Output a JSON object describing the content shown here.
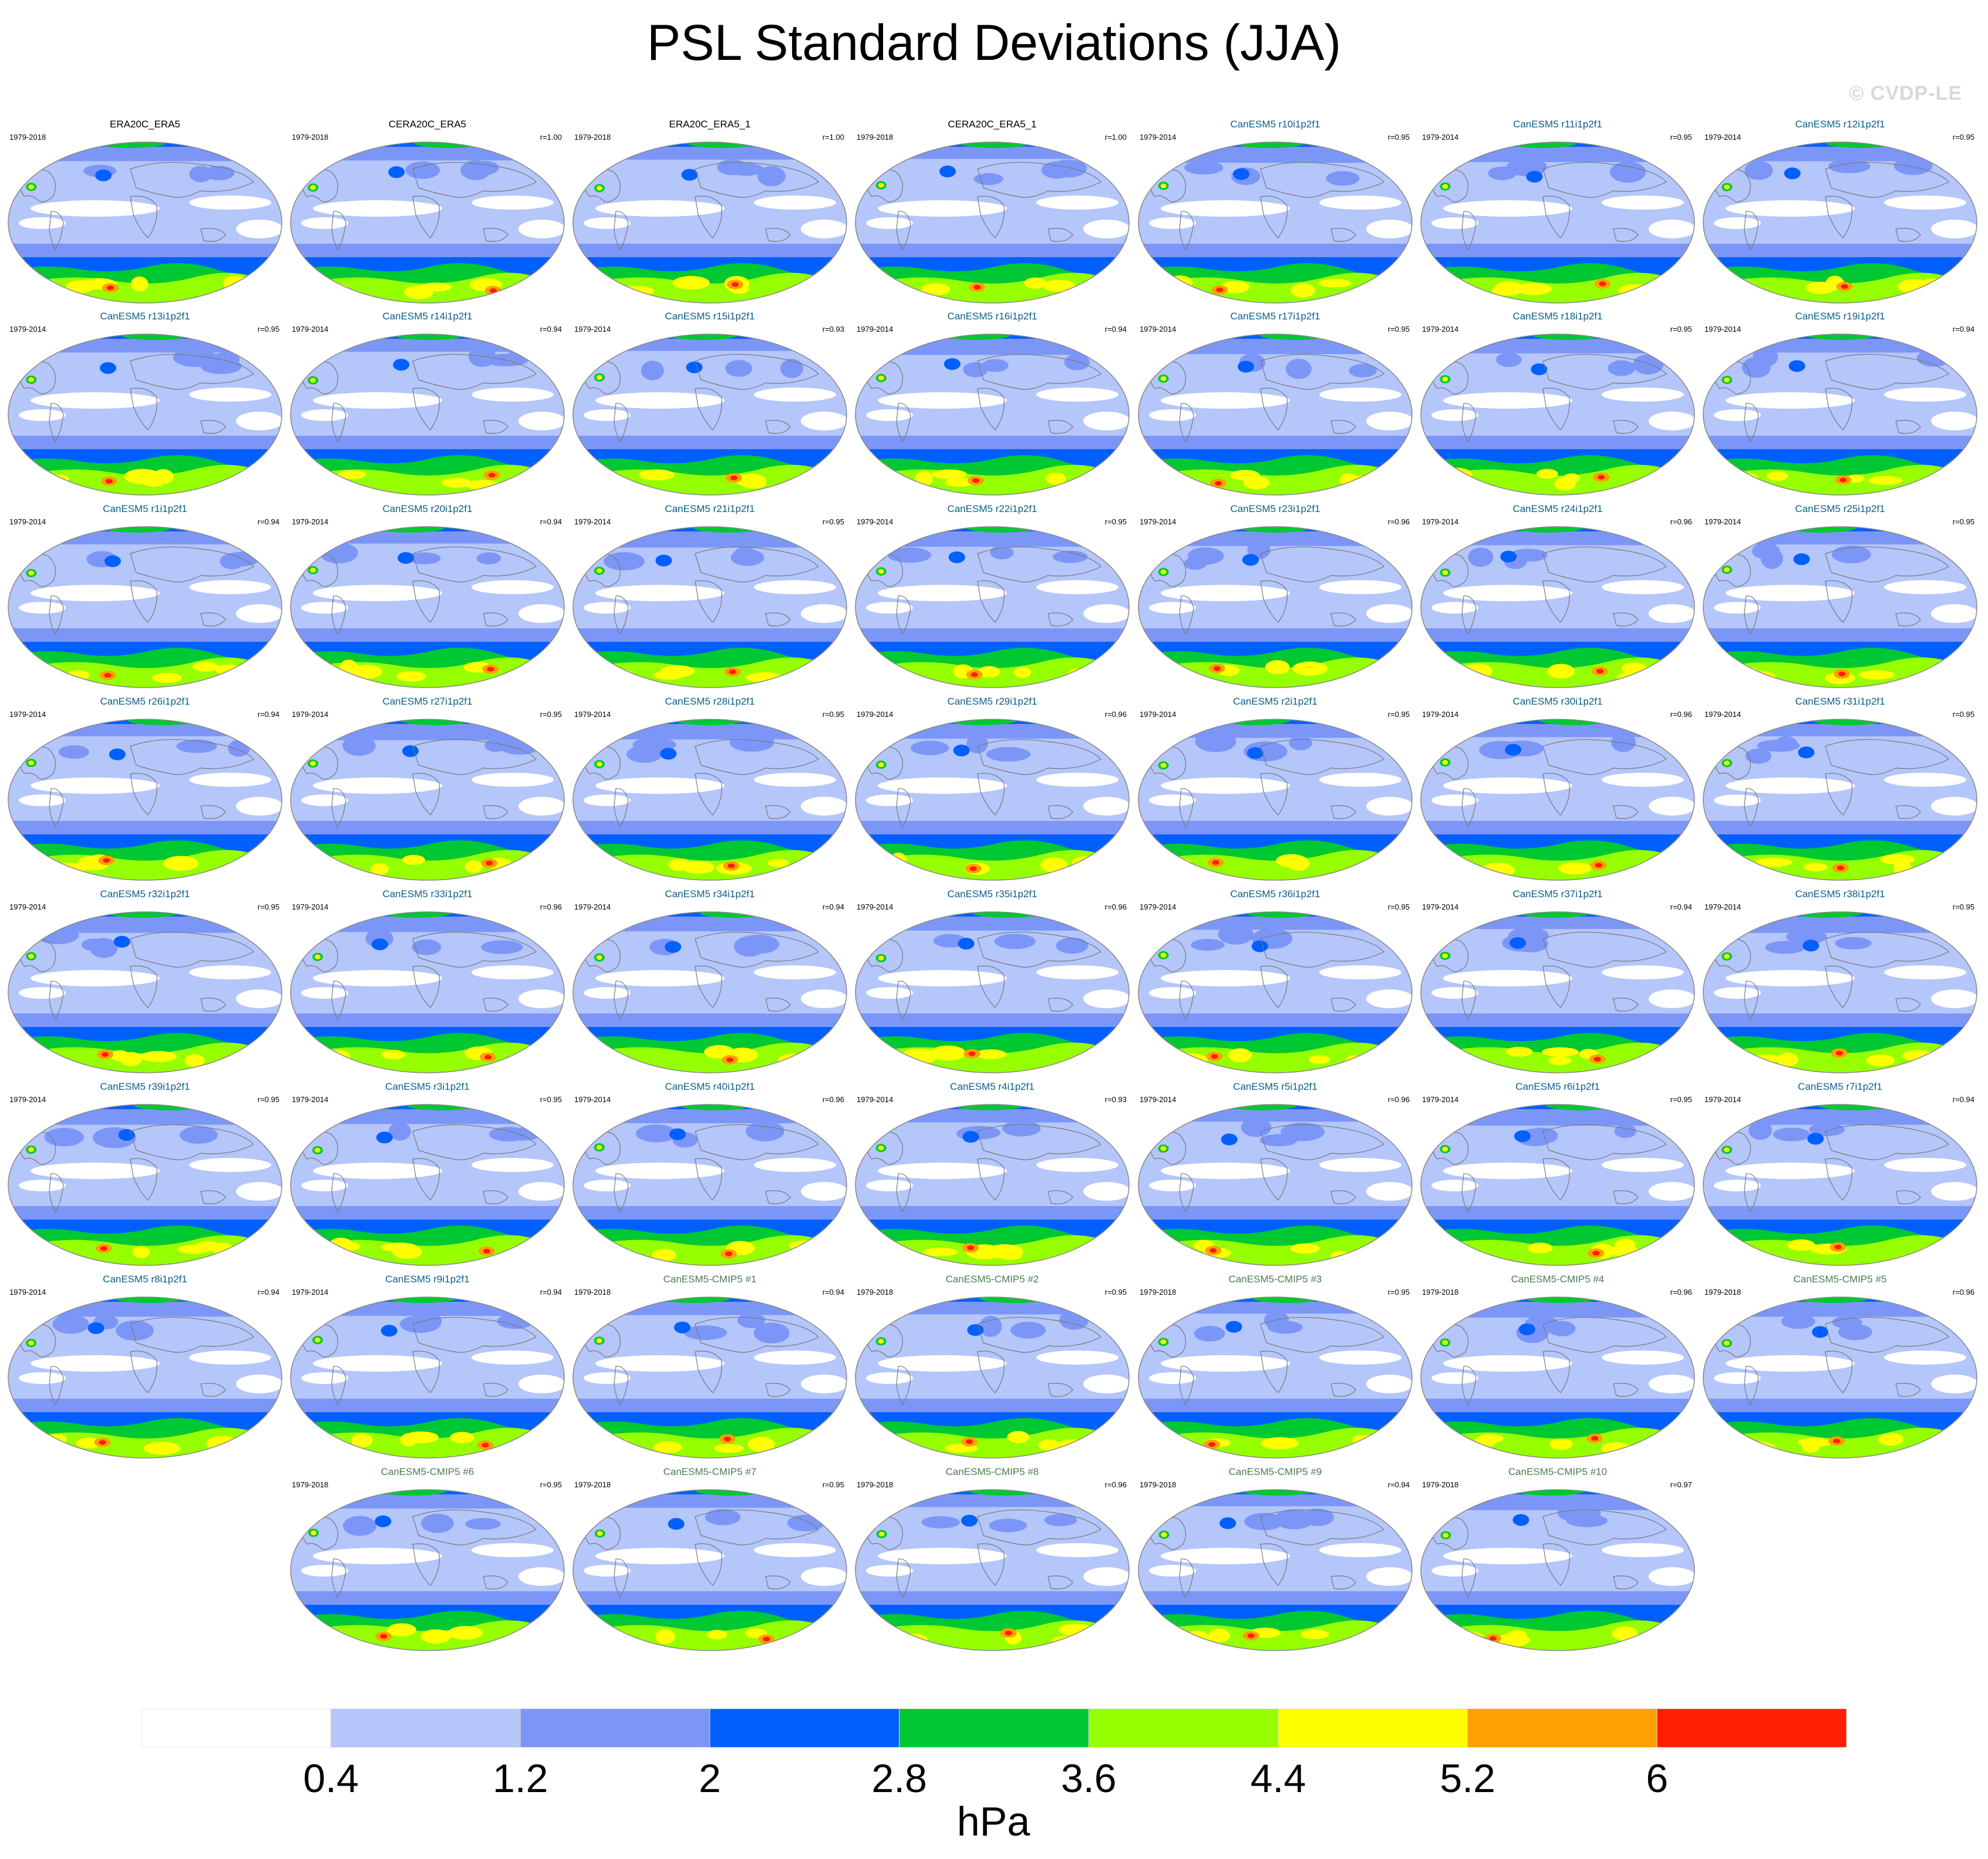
{
  "title": "PSL Standard Deviations (JJA)",
  "watermark": "© CVDP-LE",
  "units": "hPa",
  "colorbar": {
    "colors": [
      "#ffffff",
      "#b4c6fa",
      "#7c96f8",
      "#0060ff",
      "#00c832",
      "#96ff00",
      "#ffff00",
      "#ffa000",
      "#ff1e00"
    ],
    "labels": [
      "0.4",
      "1.2",
      "2",
      "2.8",
      "3.6",
      "4.4",
      "5.2",
      "6"
    ]
  },
  "panels": [
    {
      "title": "ERA20C_ERA5",
      "years": "1979-2018",
      "r": "",
      "kind": "obs"
    },
    {
      "title": "CERA20C_ERA5",
      "years": "1979-2018",
      "r": "r=1.00",
      "kind": "obs"
    },
    {
      "title": "ERA20C_ERA5_1",
      "years": "1979-2018",
      "r": "r=1.00",
      "kind": "obs"
    },
    {
      "title": "CERA20C_ERA5_1",
      "years": "1979-2018",
      "r": "r=1.00",
      "kind": "obs"
    },
    {
      "title": "CanESM5 r10i1p2f1",
      "years": "1979-2014",
      "r": "r=0.95",
      "kind": "model"
    },
    {
      "title": "CanESM5 r11i1p2f1",
      "years": "1979-2014",
      "r": "r=0.95",
      "kind": "model"
    },
    {
      "title": "CanESM5 r12i1p2f1",
      "years": "1979-2014",
      "r": "r=0.95",
      "kind": "model"
    },
    {
      "title": "CanESM5 r13i1p2f1",
      "years": "1979-2014",
      "r": "r=0.95",
      "kind": "model"
    },
    {
      "title": "CanESM5 r14i1p2f1",
      "years": "1979-2014",
      "r": "r=0.94",
      "kind": "model"
    },
    {
      "title": "CanESM5 r15i1p2f1",
      "years": "1979-2014",
      "r": "r=0.93",
      "kind": "model"
    },
    {
      "title": "CanESM5 r16i1p2f1",
      "years": "1979-2014",
      "r": "r=0.94",
      "kind": "model"
    },
    {
      "title": "CanESM5 r17i1p2f1",
      "years": "1979-2014",
      "r": "r=0.95",
      "kind": "model"
    },
    {
      "title": "CanESM5 r18i1p2f1",
      "years": "1979-2014",
      "r": "r=0.95",
      "kind": "model"
    },
    {
      "title": "CanESM5 r19i1p2f1",
      "years": "1979-2014",
      "r": "r=0.94",
      "kind": "model"
    },
    {
      "title": "CanESM5 r1i1p2f1",
      "years": "1979-2014",
      "r": "r=0.94",
      "kind": "model"
    },
    {
      "title": "CanESM5 r20i1p2f1",
      "years": "1979-2014",
      "r": "r=0.94",
      "kind": "model"
    },
    {
      "title": "CanESM5 r21i1p2f1",
      "years": "1979-2014",
      "r": "r=0.95",
      "kind": "model"
    },
    {
      "title": "CanESM5 r22i1p2f1",
      "years": "1979-2014",
      "r": "r=0.95",
      "kind": "model"
    },
    {
      "title": "CanESM5 r23i1p2f1",
      "years": "1979-2014",
      "r": "r=0.96",
      "kind": "model"
    },
    {
      "title": "CanESM5 r24i1p2f1",
      "years": "1979-2014",
      "r": "r=0.96",
      "kind": "model"
    },
    {
      "title": "CanESM5 r25i1p2f1",
      "years": "1979-2014",
      "r": "r=0.95",
      "kind": "model"
    },
    {
      "title": "CanESM5 r26i1p2f1",
      "years": "1979-2014",
      "r": "r=0.94",
      "kind": "model"
    },
    {
      "title": "CanESM5 r27i1p2f1",
      "years": "1979-2014",
      "r": "r=0.95",
      "kind": "model"
    },
    {
      "title": "CanESM5 r28i1p2f1",
      "years": "1979-2014",
      "r": "r=0.95",
      "kind": "model"
    },
    {
      "title": "CanESM5 r29i1p2f1",
      "years": "1979-2014",
      "r": "r=0.96",
      "kind": "model"
    },
    {
      "title": "CanESM5 r2i1p2f1",
      "years": "1979-2014",
      "r": "r=0.95",
      "kind": "model"
    },
    {
      "title": "CanESM5 r30i1p2f1",
      "years": "1979-2014",
      "r": "r=0.96",
      "kind": "model"
    },
    {
      "title": "CanESM5 r31i1p2f1",
      "years": "1979-2014",
      "r": "r=0.95",
      "kind": "model"
    },
    {
      "title": "CanESM5 r32i1p2f1",
      "years": "1979-2014",
      "r": "r=0.95",
      "kind": "model"
    },
    {
      "title": "CanESM5 r33i1p2f1",
      "years": "1979-2014",
      "r": "r=0.96",
      "kind": "model"
    },
    {
      "title": "CanESM5 r34i1p2f1",
      "years": "1979-2014",
      "r": "r=0.94",
      "kind": "model"
    },
    {
      "title": "CanESM5 r35i1p2f1",
      "years": "1979-2014",
      "r": "r=0.96",
      "kind": "model"
    },
    {
      "title": "CanESM5 r36i1p2f1",
      "years": "1979-2014",
      "r": "r=0.95",
      "kind": "model"
    },
    {
      "title": "CanESM5 r37i1p2f1",
      "years": "1979-2014",
      "r": "r=0.94",
      "kind": "model"
    },
    {
      "title": "CanESM5 r38i1p2f1",
      "years": "1979-2014",
      "r": "r=0.95",
      "kind": "model"
    },
    {
      "title": "CanESM5 r39i1p2f1",
      "years": "1979-2014",
      "r": "r=0.95",
      "kind": "model"
    },
    {
      "title": "CanESM5 r3i1p2f1",
      "years": "1979-2014",
      "r": "r=0.95",
      "kind": "model"
    },
    {
      "title": "CanESM5 r40i1p2f1",
      "years": "1979-2014",
      "r": "r=0.96",
      "kind": "model"
    },
    {
      "title": "CanESM5 r4i1p2f1",
      "years": "1979-2014",
      "r": "r=0.93",
      "kind": "model"
    },
    {
      "title": "CanESM5 r5i1p2f1",
      "years": "1979-2014",
      "r": "r=0.96",
      "kind": "model"
    },
    {
      "title": "CanESM5 r6i1p2f1",
      "years": "1979-2014",
      "r": "r=0.95",
      "kind": "model"
    },
    {
      "title": "CanESM5 r7i1p2f1",
      "years": "1979-2014",
      "r": "r=0.94",
      "kind": "model"
    },
    {
      "title": "CanESM5 r8i1p2f1",
      "years": "1979-2014",
      "r": "r=0.94",
      "kind": "model"
    },
    {
      "title": "CanESM5 r9i1p2f1",
      "years": "1979-2014",
      "r": "r=0.94",
      "kind": "model"
    },
    {
      "title": "CanESM5-CMIP5 #1",
      "years": "1979-2018",
      "r": "r=0.94",
      "kind": "cmip"
    },
    {
      "title": "CanESM5-CMIP5 #2",
      "years": "1979-2018",
      "r": "r=0.95",
      "kind": "cmip"
    },
    {
      "title": "CanESM5-CMIP5 #3",
      "years": "1979-2018",
      "r": "r=0.95",
      "kind": "cmip"
    },
    {
      "title": "CanESM5-CMIP5 #4",
      "years": "1979-2018",
      "r": "r=0.96",
      "kind": "cmip"
    },
    {
      "title": "CanESM5-CMIP5 #5",
      "years": "1979-2018",
      "r": "r=0.96",
      "kind": "cmip"
    },
    {
      "title": "CanESM5-CMIP5 #6",
      "years": "1979-2018",
      "r": "r=0.95",
      "kind": "cmip"
    },
    {
      "title": "CanESM5-CMIP5 #7",
      "years": "1979-2018",
      "r": "r=0.95",
      "kind": "cmip"
    },
    {
      "title": "CanESM5-CMIP5 #8",
      "years": "1979-2018",
      "r": "r=0.96",
      "kind": "cmip"
    },
    {
      "title": "CanESM5-CMIP5 #9",
      "years": "1979-2018",
      "r": "r=0.94",
      "kind": "cmip"
    },
    {
      "title": "CanESM5-CMIP5 #10",
      "years": "1979-2018",
      "r": "r=0.97",
      "kind": "cmip"
    }
  ]
}
